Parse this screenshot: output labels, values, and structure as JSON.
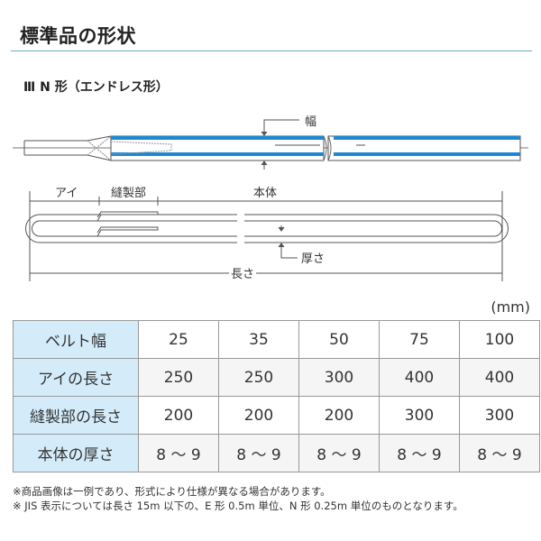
{
  "title": "標準品の形状",
  "subtitle": "Ⅲ N 形（エンドレス形）",
  "diagram": {
    "width_label": "幅",
    "eye_label": "アイ",
    "sewn_label": "縫製部",
    "body_label": "本体",
    "thickness_label": "厚さ",
    "length_label": "長さ",
    "accent_color": "#1e88d0"
  },
  "unit": "(mm)",
  "table": {
    "rows": [
      {
        "label": "ベルト幅",
        "values": [
          "25",
          "35",
          "50",
          "75",
          "100"
        ]
      },
      {
        "label": "アイの長さ",
        "values": [
          "250",
          "250",
          "300",
          "400",
          "400"
        ]
      },
      {
        "label": "縫製部の長さ",
        "values": [
          "200",
          "200",
          "200",
          "300",
          "300"
        ]
      },
      {
        "label": "本体の厚さ",
        "values": [
          "8 ～ 9",
          "8 ～ 9",
          "8 ～ 9",
          "8 ～ 9",
          "8 ～ 9"
        ]
      }
    ]
  },
  "notes": [
    "※商品画像は一例であり、形式により仕様が異なる場合があります。",
    "※ JIS 表示については長さ 15m 以下の、E 形 0.5m 単位、N 形 0.25m 単位のものとなります。"
  ]
}
